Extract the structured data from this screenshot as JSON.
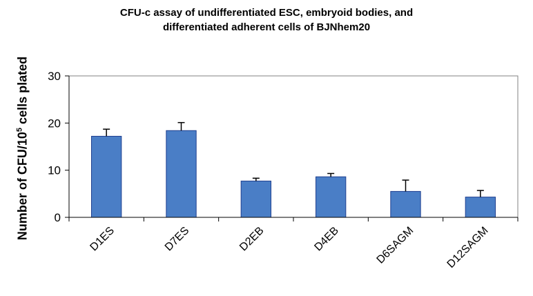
{
  "chart_data": {
    "type": "bar",
    "title": "CFU-c assay of undifferentiated ESC, embryoid bodies, and differentiated adherent cells of BJNhem20",
    "title_lines": [
      "CFU-c assay of undifferentiated ESC, embryoid bodies, and",
      "differentiated adherent cells of BJNhem20"
    ],
    "ylabel": {
      "prefix": "Number of CFU/10",
      "superscript": "5",
      "suffix": " cells plated"
    },
    "xlabel": "",
    "ylim": [
      0,
      30
    ],
    "yticks": [
      0,
      10,
      20,
      30
    ],
    "categories": [
      "D1ES",
      "D7ES",
      "D2EB",
      "D4EB",
      "D6SAGM",
      "D12SAGM"
    ],
    "values": [
      17.2,
      18.4,
      7.7,
      8.6,
      5.5,
      4.3
    ],
    "errors": [
      1.5,
      1.7,
      0.6,
      0.7,
      2.4,
      1.4
    ],
    "bar_color": "#4a7ec6",
    "bar_edge_color": "#1f3f8f",
    "grid": false,
    "legend": "none"
  }
}
